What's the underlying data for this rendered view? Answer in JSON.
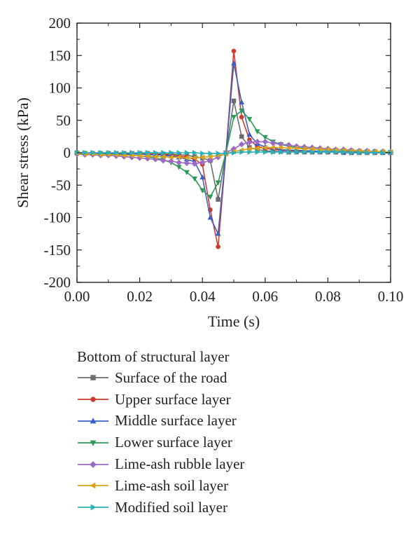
{
  "chart_data": {
    "type": "line",
    "xlabel": "Time (s)",
    "ylabel": "Shear stress (kPa)",
    "xlim": [
      0,
      0.1
    ],
    "ylim": [
      -200,
      200
    ],
    "xticks": [
      "0.00",
      "0.02",
      "0.04",
      "0.06",
      "0.08",
      "0.10"
    ],
    "yticks": [
      "-200",
      "-150",
      "-100",
      "-50",
      "0",
      "50",
      "100",
      "150",
      "200"
    ],
    "legend_title": "Bottom of structural layer",
    "legend_position": "below",
    "grid": false,
    "series": [
      {
        "name": "Surface of the road",
        "color": "#6d6d6d",
        "marker": "square",
        "x": [
          0,
          0.0025,
          0.005,
          0.0075,
          0.01,
          0.0125,
          0.015,
          0.0175,
          0.02,
          0.0225,
          0.025,
          0.0275,
          0.03,
          0.0325,
          0.035,
          0.0375,
          0.04,
          0.0425,
          0.045,
          0.0475,
          0.05,
          0.0525,
          0.055,
          0.0575,
          0.06,
          0.0625,
          0.065,
          0.0675,
          0.07,
          0.0725,
          0.075,
          0.0775,
          0.08,
          0.0825,
          0.085,
          0.0875,
          0.09,
          0.0925,
          0.095,
          0.0975,
          0.1
        ],
        "y": [
          0,
          -1,
          -1,
          -1,
          -1,
          -1,
          -1,
          -1,
          -1,
          -1,
          -2,
          -2,
          -2,
          -3,
          -4,
          -6,
          -8,
          -12,
          -72,
          0,
          80,
          25,
          8,
          5,
          3,
          2,
          2,
          1,
          1,
          1,
          1,
          1,
          1,
          1,
          0,
          0,
          0,
          0,
          0,
          0,
          0
        ]
      },
      {
        "name": "Upper surface layer",
        "color": "#d03a2a",
        "marker": "circle",
        "x": [
          0,
          0.0025,
          0.005,
          0.0075,
          0.01,
          0.0125,
          0.015,
          0.0175,
          0.02,
          0.0225,
          0.025,
          0.0275,
          0.03,
          0.0325,
          0.035,
          0.0375,
          0.04,
          0.0425,
          0.045,
          0.0475,
          0.05,
          0.0525,
          0.055,
          0.0575,
          0.06,
          0.0625,
          0.065,
          0.0675,
          0.07,
          0.0725,
          0.075,
          0.0775,
          0.08,
          0.0825,
          0.085,
          0.0875,
          0.09,
          0.0925,
          0.095,
          0.0975,
          0.1
        ],
        "y": [
          0,
          -1,
          -1,
          -1,
          -1,
          -1,
          -1,
          -1,
          -2,
          -2,
          -2,
          -3,
          -3,
          -5,
          -7,
          -10,
          -18,
          -88,
          -145,
          0,
          157,
          55,
          20,
          10,
          7,
          5,
          4,
          3,
          3,
          2,
          2,
          2,
          1,
          1,
          1,
          1,
          1,
          1,
          0,
          0,
          0
        ]
      },
      {
        "name": "Middle surface layer",
        "color": "#3a5fc8",
        "marker": "triangle-up",
        "x": [
          0,
          0.0025,
          0.005,
          0.0075,
          0.01,
          0.0125,
          0.015,
          0.0175,
          0.02,
          0.0225,
          0.025,
          0.0275,
          0.03,
          0.0325,
          0.035,
          0.0375,
          0.04,
          0.0425,
          0.045,
          0.0475,
          0.05,
          0.0525,
          0.055,
          0.0575,
          0.06,
          0.0625,
          0.065,
          0.0675,
          0.07,
          0.0725,
          0.075,
          0.0775,
          0.08,
          0.0825,
          0.085,
          0.0875,
          0.09,
          0.0925,
          0.095,
          0.0975,
          0.1
        ],
        "y": [
          0,
          -1,
          -1,
          -1,
          -1,
          -2,
          -2,
          -2,
          -2,
          -3,
          -3,
          -4,
          -5,
          -7,
          -10,
          -14,
          -38,
          -100,
          -125,
          0,
          138,
          78,
          28,
          14,
          9,
          7,
          5,
          4,
          4,
          3,
          3,
          2,
          2,
          2,
          1,
          1,
          1,
          1,
          1,
          0,
          0
        ]
      },
      {
        "name": "Lower surface layer",
        "color": "#2e9a57",
        "marker": "triangle-down",
        "x": [
          0,
          0.0025,
          0.005,
          0.0075,
          0.01,
          0.0125,
          0.015,
          0.0175,
          0.02,
          0.0225,
          0.025,
          0.0275,
          0.03,
          0.0325,
          0.035,
          0.0375,
          0.04,
          0.0425,
          0.045,
          0.0475,
          0.05,
          0.0525,
          0.055,
          0.0575,
          0.06,
          0.0625,
          0.065,
          0.0675,
          0.07,
          0.0725,
          0.075,
          0.0775,
          0.08,
          0.0825,
          0.085,
          0.0875,
          0.09,
          0.0925,
          0.095,
          0.0975,
          0.1
        ],
        "y": [
          -1,
          -1,
          -2,
          -2,
          -2,
          -3,
          -3,
          -4,
          -5,
          -6,
          -8,
          -11,
          -15,
          -22,
          -30,
          -40,
          -58,
          -68,
          -46,
          0,
          55,
          65,
          52,
          33,
          24,
          17,
          13,
          10,
          8,
          7,
          6,
          5,
          4,
          4,
          3,
          3,
          2,
          2,
          2,
          1,
          1
        ]
      },
      {
        "name": "Lime-ash rubble layer",
        "color": "#9b6ac4",
        "marker": "diamond",
        "x": [
          0,
          0.0025,
          0.005,
          0.0075,
          0.01,
          0.0125,
          0.015,
          0.0175,
          0.02,
          0.0225,
          0.025,
          0.0275,
          0.03,
          0.0325,
          0.035,
          0.0375,
          0.04,
          0.0425,
          0.045,
          0.0475,
          0.05,
          0.0525,
          0.055,
          0.0575,
          0.06,
          0.0625,
          0.065,
          0.0675,
          0.07,
          0.0725,
          0.075,
          0.0775,
          0.08,
          0.0825,
          0.085,
          0.0875,
          0.09,
          0.0925,
          0.095,
          0.0975,
          0.1
        ],
        "y": [
          -2,
          -3,
          -3,
          -4,
          -4,
          -5,
          -6,
          -7,
          -8,
          -9,
          -10,
          -12,
          -13,
          -15,
          -16,
          -17,
          -15,
          -12,
          -7,
          0,
          6,
          13,
          16,
          17,
          17,
          15,
          13,
          12,
          10,
          9,
          8,
          7,
          6,
          5,
          5,
          4,
          3,
          3,
          2,
          2,
          1
        ]
      },
      {
        "name": "Lime-ash soil layer",
        "color": "#d9a21a",
        "marker": "triangle-left",
        "x": [
          0,
          0.0025,
          0.005,
          0.0075,
          0.01,
          0.0125,
          0.015,
          0.0175,
          0.02,
          0.0225,
          0.025,
          0.0275,
          0.03,
          0.0325,
          0.035,
          0.0375,
          0.04,
          0.0425,
          0.045,
          0.0475,
          0.05,
          0.0525,
          0.055,
          0.0575,
          0.06,
          0.0625,
          0.065,
          0.0675,
          0.07,
          0.0725,
          0.075,
          0.0775,
          0.08,
          0.0825,
          0.085,
          0.0875,
          0.09,
          0.0925,
          0.095,
          0.0975,
          0.1
        ],
        "y": [
          -1,
          -2,
          -2,
          -3,
          -3,
          -3,
          -4,
          -4,
          -5,
          -5,
          -6,
          -6,
          -7,
          -7,
          -8,
          -8,
          -7,
          -6,
          -4,
          -2,
          2,
          4,
          6,
          7,
          8,
          8,
          8,
          7,
          7,
          6,
          6,
          5,
          5,
          4,
          4,
          3,
          3,
          2,
          2,
          2,
          1
        ]
      },
      {
        "name": "Modified soil layer",
        "color": "#2ab0b8",
        "marker": "triangle-right",
        "x": [
          0,
          0.0025,
          0.005,
          0.0075,
          0.01,
          0.0125,
          0.015,
          0.0175,
          0.02,
          0.0225,
          0.025,
          0.0275,
          0.03,
          0.0325,
          0.035,
          0.0375,
          0.04,
          0.0425,
          0.045,
          0.0475,
          0.05,
          0.0525,
          0.055,
          0.0575,
          0.06,
          0.0625,
          0.065,
          0.0675,
          0.07,
          0.0725,
          0.075,
          0.0775,
          0.08,
          0.0825,
          0.085,
          0.0875,
          0.09,
          0.0925,
          0.095,
          0.0975,
          0.1
        ],
        "y": [
          0,
          0,
          0,
          0,
          0,
          0,
          0,
          0,
          0,
          0,
          0,
          0,
          0,
          0,
          0,
          0,
          -1,
          -1,
          -1,
          -1,
          0,
          1,
          1,
          1,
          1,
          1,
          1,
          1,
          1,
          1,
          1,
          1,
          1,
          1,
          1,
          0,
          0,
          0,
          0,
          0,
          0
        ]
      }
    ]
  }
}
